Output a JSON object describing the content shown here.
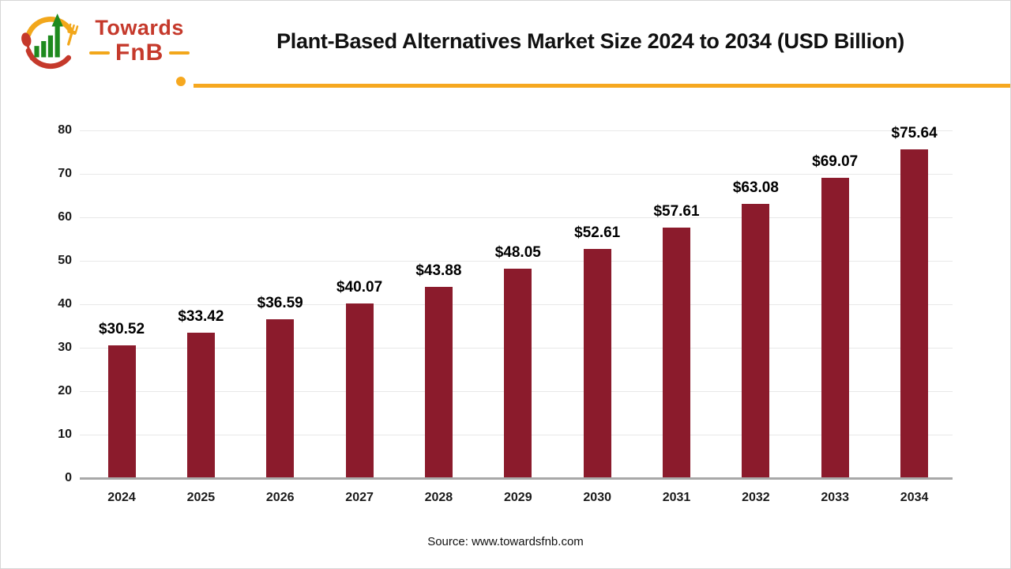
{
  "logo": {
    "brand_top": "Towards",
    "brand_bottom": "FnB"
  },
  "header": {
    "title": "Plant-Based Alternatives Market Size 2024 to 2034 (USD Billion)"
  },
  "footer": {
    "source": "Source: www.towardsfnb.com"
  },
  "colors": {
    "bar": "#8b1b2c",
    "accent_yellow": "#f6a81f",
    "brand_red": "#c5392b",
    "brand_green": "#1e8a1e",
    "gridline": "#e8e8e8",
    "axis": "#a8a8a8"
  },
  "chart_data": {
    "type": "bar",
    "title": "Plant-Based Alternatives Market Size 2024 to 2034 (USD Billion)",
    "categories": [
      "2024",
      "2025",
      "2026",
      "2027",
      "2028",
      "2029",
      "2030",
      "2031",
      "2032",
      "2033",
      "2034"
    ],
    "values": [
      30.52,
      33.42,
      36.59,
      40.07,
      43.88,
      48.05,
      52.61,
      57.61,
      63.08,
      69.07,
      75.64
    ],
    "value_labels": [
      "$30.52",
      "$33.42",
      "$36.59",
      "$40.07",
      "$43.88",
      "$48.05",
      "$52.61",
      "$57.61",
      "$63.08",
      "$69.07",
      "$75.64"
    ],
    "xlabel": "",
    "ylabel": "",
    "ylim": [
      0,
      80
    ],
    "ytick_interval": 10,
    "yticks": [
      0,
      10,
      20,
      30,
      40,
      50,
      60,
      70,
      80
    ],
    "grid": true,
    "legend_position": "none",
    "bar_color": "#8b1b2c",
    "source": "Source: www.towardsfnb.com"
  }
}
